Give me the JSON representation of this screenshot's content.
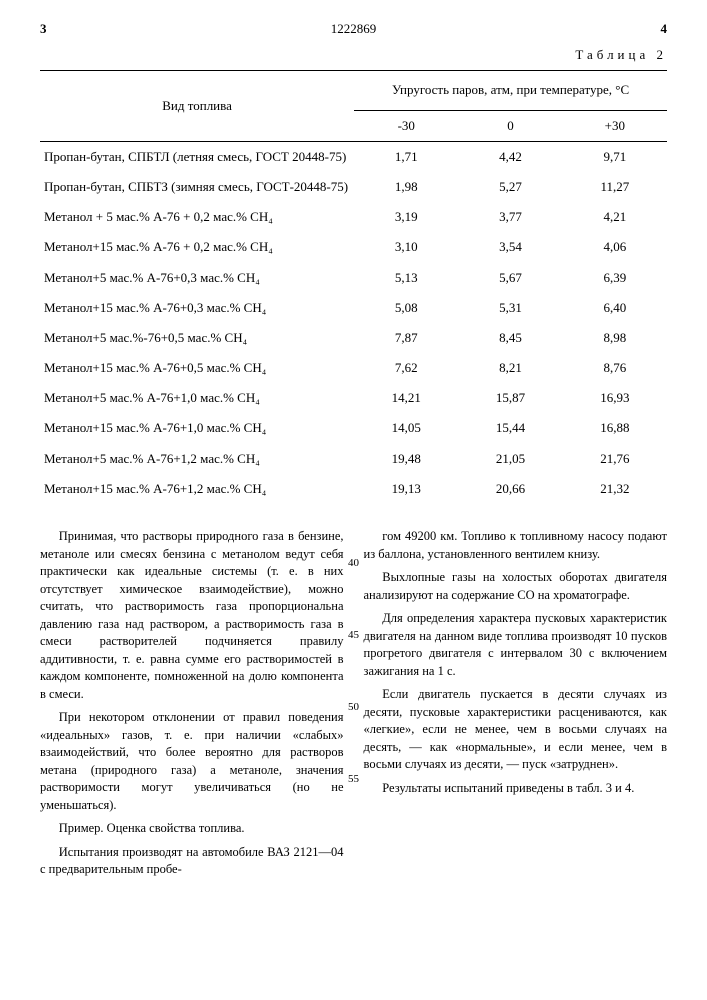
{
  "header": {
    "page_left": "3",
    "doc_number": "1222869",
    "page_right": "4"
  },
  "table_label": "Таблица 2",
  "table": {
    "col_fuel": "Вид топлива",
    "col_group": "Упругость паров, атм, при температуре, °С",
    "sub_cols": [
      "-30",
      "0",
      "+30"
    ],
    "rows": [
      {
        "label": "Пропан-бутан, СПБТЛ (летняя смесь, ГОСТ 20448-75)",
        "v": [
          "1,71",
          "4,42",
          "9,71"
        ]
      },
      {
        "label": "Пропан-бутан, СПБТЗ (зимняя смесь, ГОСТ-20448-75)",
        "v": [
          "1,98",
          "5,27",
          "11,27"
        ]
      },
      {
        "label": "Метанол + 5 мас.% А-76 + 0,2 мас.% CH₄",
        "v": [
          "3,19",
          "3,77",
          "4,21"
        ]
      },
      {
        "label": "Метанол+15 мас.% А-76 + 0,2 мас.% CH₄",
        "v": [
          "3,10",
          "3,54",
          "4,06"
        ]
      },
      {
        "label": "Метанол+5 мас.% А-76+0,3 мас.% CH₄",
        "v": [
          "5,13",
          "5,67",
          "6,39"
        ]
      },
      {
        "label": "Метанол+15 мас.% А-76+0,3 мас.% CH₄",
        "v": [
          "5,08",
          "5,31",
          "6,40"
        ]
      },
      {
        "label": "Метанол+5 мас.%-76+0,5 мас.% CH₄",
        "v": [
          "7,87",
          "8,45",
          "8,98"
        ]
      },
      {
        "label": "Метанол+15 мас.% А-76+0,5 мас.% CH₄",
        "v": [
          "7,62",
          "8,21",
          "8,76"
        ]
      },
      {
        "label": "Метанол+5 мас.% А-76+1,0 мас.% CH₄",
        "v": [
          "14,21",
          "15,87",
          "16,93"
        ]
      },
      {
        "label": "Метанол+15 мас.% А-76+1,0 мас.% CH₄",
        "v": [
          "14,05",
          "15,44",
          "16,88"
        ]
      },
      {
        "label": "Метанол+5 мас.% А-76+1,2 мас.% CH₄",
        "v": [
          "19,48",
          "21,05",
          "21,76"
        ]
      },
      {
        "label": "Метанол+15 мас.% А-76+1,2 мас.% CH₄",
        "v": [
          "19,13",
          "20,66",
          "21,32"
        ]
      }
    ]
  },
  "body": {
    "line_nums": {
      "n40": "40",
      "n45": "45",
      "n50": "50",
      "n55": "55"
    },
    "left": {
      "p1": "Принимая, что растворы природного газа в бензине, метаноле или смесях бензина с метанолом ведут себя практически как идеальные системы (т. е. в них отсутствует химическое взаимодействие), можно считать, что растворимость газа пропорциональна давлению газа над раствором, а растворимость газа в смеси растворителей подчиняется правилу аддитивности, т. е. равна сумме его растворимостей в каждом компоненте, помноженной на долю компонента в смеси.",
      "p2": "При некотором отклонении от правил поведения «идеальных» газов, т. е. при наличии «слабых» взаимодействий, что более вероятно для растворов метана (природного газа) а метаноле, значения растворимости могут увеличиваться (но не уменьшаться).",
      "p3": "Пример. Оценка свойства топлива.",
      "p4": "Испытания производят на автомобиле ВАЗ 2121—04 с предварительным пробе-"
    },
    "right": {
      "p1": "гом 49200 км. Топливо к топливному насосу подают из баллона, установленного вентилем книзу.",
      "p2": "Выхлопные газы на холостых оборотах двигателя анализируют на содержание СО на хроматографе.",
      "p3": "Для определения характера пусковых характеристик двигателя на данном виде топлива производят 10 пусков прогретого двигателя с интервалом 30 с включением зажигания на 1 с.",
      "p4": "Если двигатель пускается в десяти случаях из десяти, пусковые характеристики расцениваются, как «легкие», если не менее, чем в восьми случаях на десять, — как «нормальные», и если менее, чем в восьми случаях из десяти, — пуск «затруднен».",
      "p5": "Результаты испытаний приведены в табл. 3 и 4."
    }
  }
}
